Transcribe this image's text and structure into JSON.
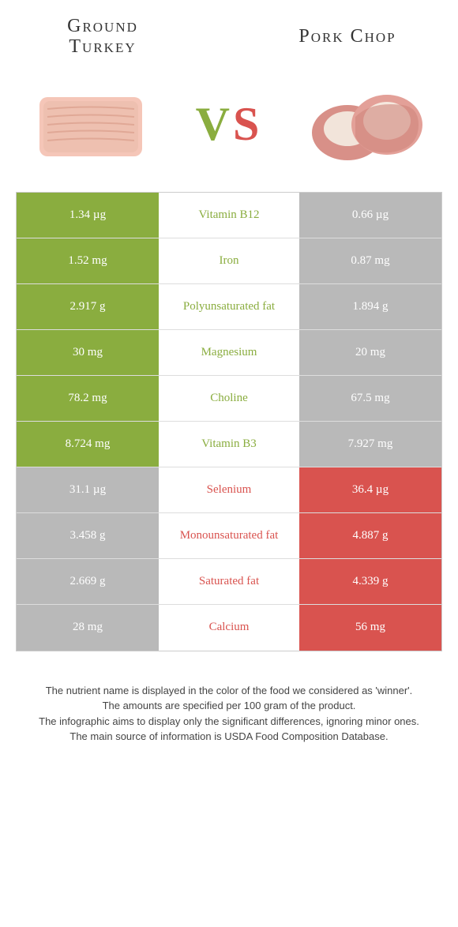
{
  "colors": {
    "green": "#8aad3f",
    "red": "#d9534f",
    "idle": "#b9b9b9",
    "white": "#ffffff"
  },
  "header": {
    "left_title": "Ground Turkey",
    "right_title": "Pork Chop",
    "vs_v": "V",
    "vs_s": "S"
  },
  "nutrients": [
    {
      "name": "Vitamin B12",
      "left": "1.34 µg",
      "right": "0.66 µg",
      "winner": "left"
    },
    {
      "name": "Iron",
      "left": "1.52 mg",
      "right": "0.87 mg",
      "winner": "left"
    },
    {
      "name": "Polyunsaturated fat",
      "left": "2.917 g",
      "right": "1.894 g",
      "winner": "left"
    },
    {
      "name": "Magnesium",
      "left": "30 mg",
      "right": "20 mg",
      "winner": "left"
    },
    {
      "name": "Choline",
      "left": "78.2 mg",
      "right": "67.5 mg",
      "winner": "left"
    },
    {
      "name": "Vitamin B3",
      "left": "8.724 mg",
      "right": "7.927 mg",
      "winner": "left"
    },
    {
      "name": "Selenium",
      "left": "31.1 µg",
      "right": "36.4 µg",
      "winner": "right"
    },
    {
      "name": "Monounsaturated fat",
      "left": "3.458 g",
      "right": "4.887 g",
      "winner": "right"
    },
    {
      "name": "Saturated fat",
      "left": "2.669 g",
      "right": "4.339 g",
      "winner": "right"
    },
    {
      "name": "Calcium",
      "left": "28 mg",
      "right": "56 mg",
      "winner": "right"
    }
  ],
  "footer": {
    "line1": "The nutrient name is displayed in the color of the food we considered as 'winner'.",
    "line2": "The amounts are specified per 100 gram of the product.",
    "line3": "The infographic aims to display only the significant differences, ignoring minor ones.",
    "line4": "The main source of information is USDA Food Composition Database."
  }
}
